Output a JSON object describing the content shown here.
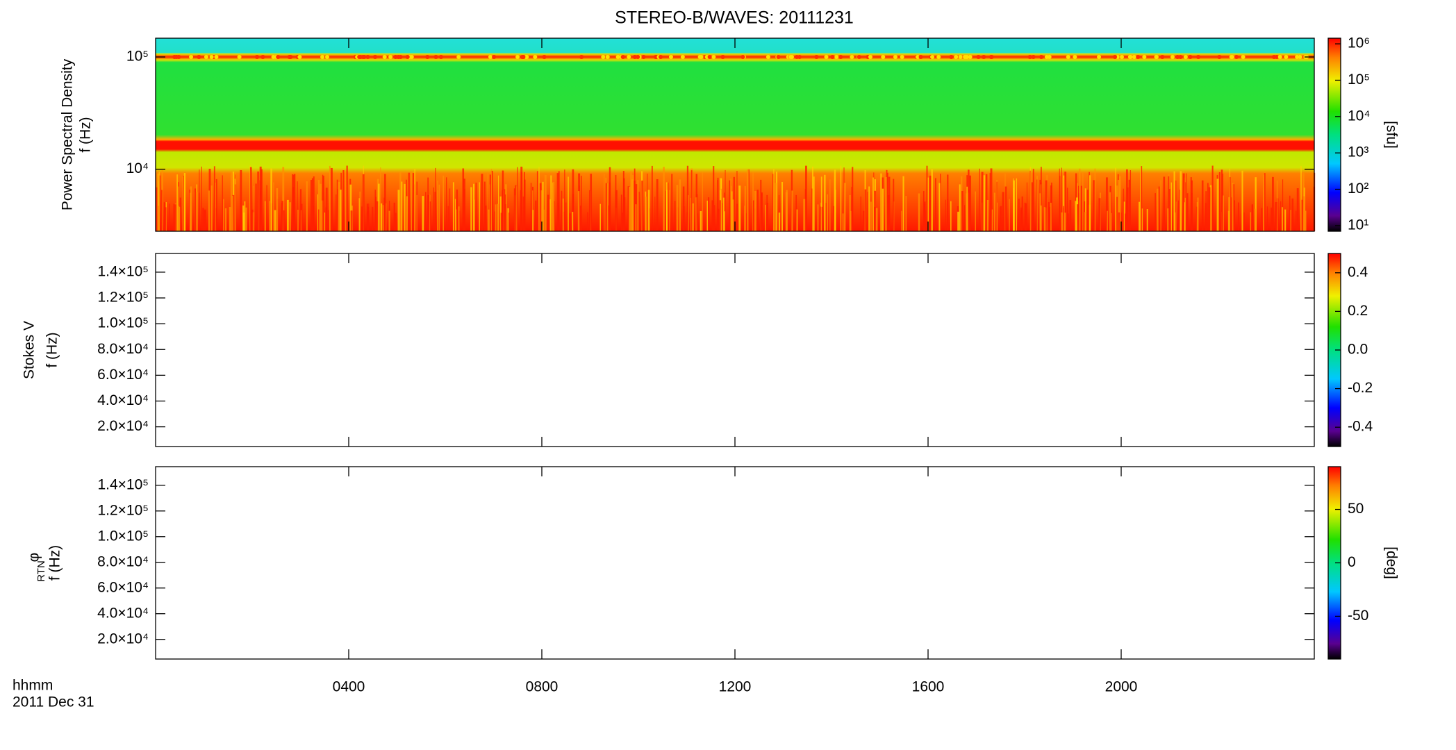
{
  "chart_data": [
    {
      "type": "spectrogram",
      "title": "STEREO-B/WAVES: 20111231",
      "ylabel": "Power Spectral Density",
      "ylabel2": "f (Hz)",
      "yscale": "log",
      "ylim": [
        2800,
        147000
      ],
      "yticks": [
        {
          "value": 10000,
          "label": "10⁴"
        },
        {
          "value": 100000,
          "label": "10⁵"
        }
      ],
      "xlim": [
        0,
        24
      ],
      "colorbar": {
        "scale": "log",
        "lim": [
          7,
          1430000
        ],
        "label": "[sfu]",
        "ticks": [
          {
            "value": 10,
            "label": "10¹"
          },
          {
            "value": 100,
            "label": "10²"
          },
          {
            "value": 1000,
            "label": "10³"
          },
          {
            "value": 10000,
            "label": "10⁴"
          },
          {
            "value": 100000,
            "label": "10⁵"
          },
          {
            "value": 1000000,
            "label": "10⁶"
          }
        ]
      }
    },
    {
      "type": "spectrogram",
      "ylabel": "Stokes V",
      "ylabel2": "f (Hz)",
      "yscale": "linear",
      "ylim": [
        4700,
        154500
      ],
      "yticks": [
        {
          "value": 20000,
          "label": "2.0×10⁴"
        },
        {
          "value": 40000,
          "label": "4.0×10⁴"
        },
        {
          "value": 60000,
          "label": "6.0×10⁴"
        },
        {
          "value": 80000,
          "label": "8.0×10⁴"
        },
        {
          "value": 100000,
          "label": "1.0×10⁵"
        },
        {
          "value": 120000,
          "label": "1.2×10⁵"
        },
        {
          "value": 140000,
          "label": "1.4×10⁵"
        }
      ],
      "xlim": [
        0,
        24
      ],
      "colorbar": {
        "scale": "linear",
        "lim": [
          -0.5,
          0.5
        ],
        "ticks": [
          -0.4,
          -0.2,
          {
            "value": 0,
            "label": "0.0"
          },
          0.2,
          0.4
        ]
      }
    },
    {
      "type": "spectrogram",
      "ylabel": "φ",
      "ylabel_subscript": "RTN",
      "ylabel2": "f (Hz)",
      "yscale": "linear",
      "ylim": [
        4700,
        154500
      ],
      "yticks": [
        {
          "value": 20000,
          "label": "2.0×10⁴"
        },
        {
          "value": 40000,
          "label": "4.0×10⁴"
        },
        {
          "value": 60000,
          "label": "6.0×10⁴"
        },
        {
          "value": 80000,
          "label": "8.0×10⁴"
        },
        {
          "value": 100000,
          "label": "1.0×10⁵"
        },
        {
          "value": 120000,
          "label": "1.2×10⁵"
        },
        {
          "value": 140000,
          "label": "1.4×10⁵"
        }
      ],
      "xlim": [
        0,
        24
      ],
      "xticks": [
        {
          "value": 4,
          "label": "0400"
        },
        {
          "value": 8,
          "label": "0800"
        },
        {
          "value": 12,
          "label": "1200"
        },
        {
          "value": 16,
          "label": "1600"
        },
        {
          "value": 20,
          "label": "2000"
        }
      ],
      "xlabel": "hhmm",
      "date": "2011 Dec 31",
      "colorbar": {
        "scale": "linear",
        "lim": [
          -90,
          90
        ],
        "label": "[deg]",
        "ticks": [
          -50,
          0,
          50
        ]
      }
    }
  ]
}
